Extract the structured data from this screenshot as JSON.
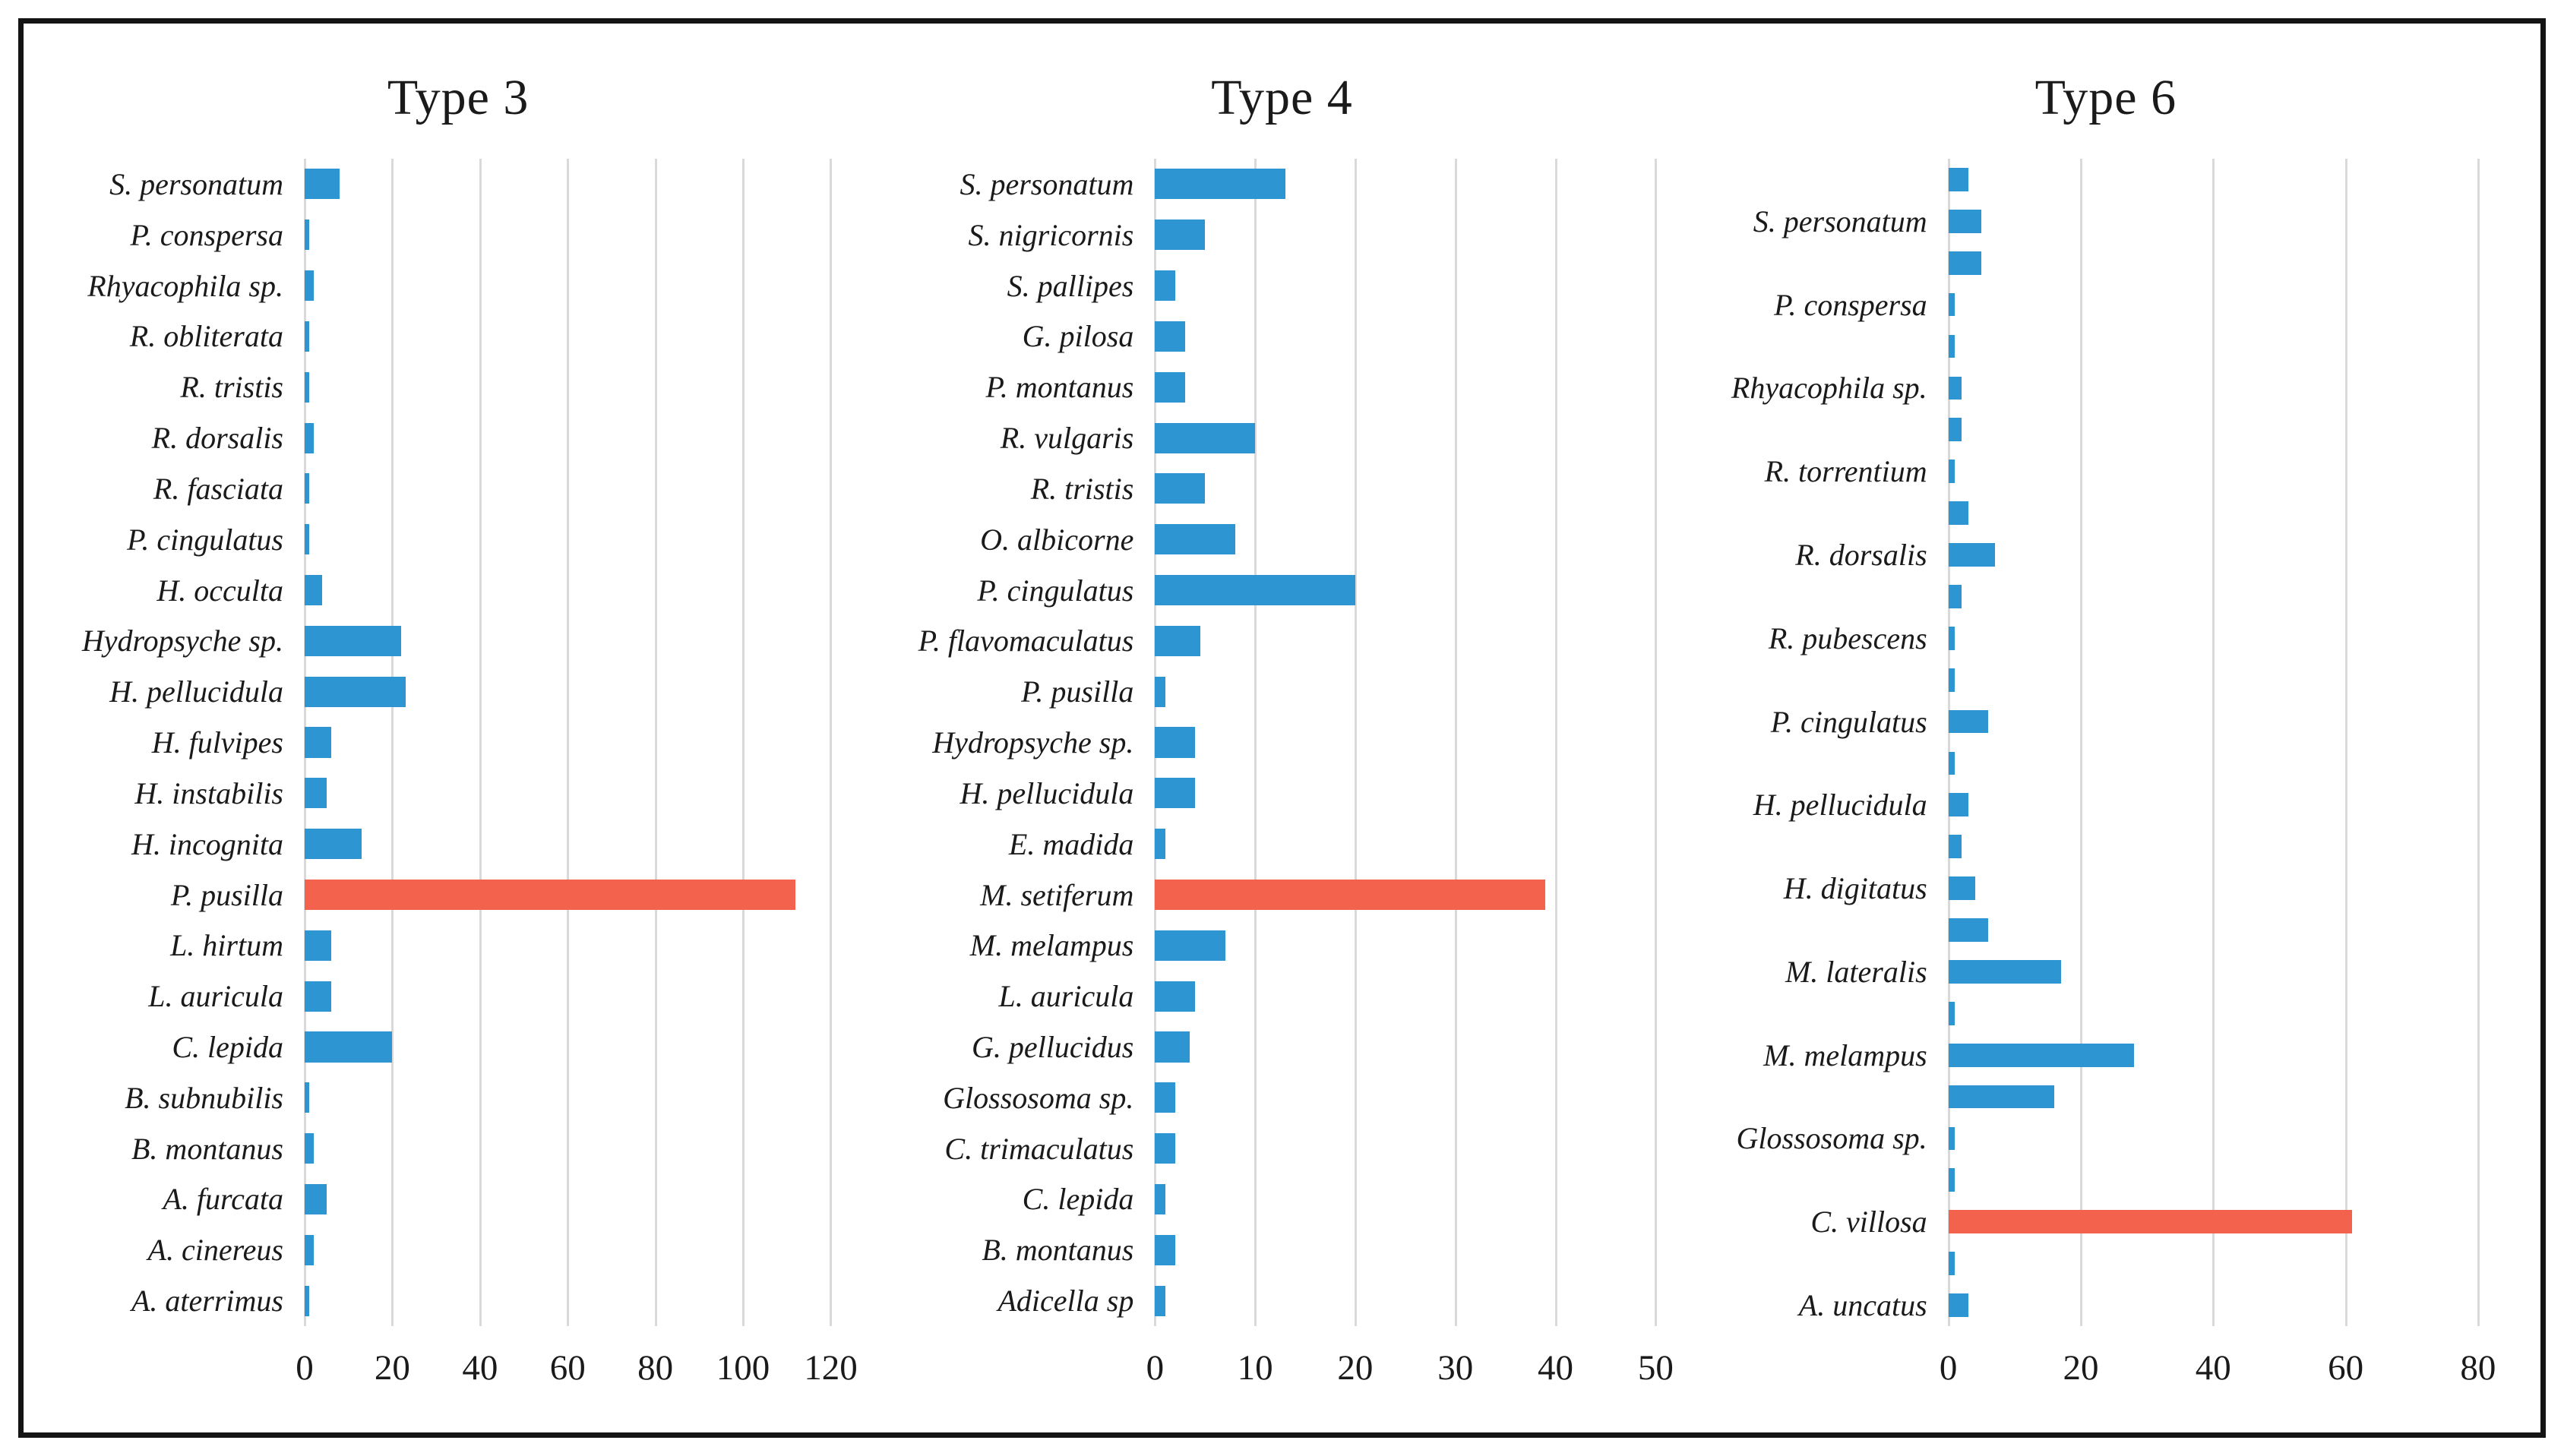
{
  "colors": {
    "bar": "#2D96D2",
    "highlight_bar": "#F2624D",
    "gridline": "#D9D9D9",
    "frame_border": "#141414",
    "text": "#1A1A1A",
    "background": "#FFFFFF"
  },
  "chart_data": [
    {
      "type": "bar",
      "orientation": "horizontal",
      "title": "Type 3",
      "xlabel": "",
      "ylabel": "",
      "xlim": [
        0,
        120
      ],
      "xticks": [
        0,
        20,
        40,
        60,
        80,
        100,
        120
      ],
      "grid": true,
      "legend": "none",
      "bars": [
        {
          "label": "S. personatum",
          "value": 8
        },
        {
          "label": "P. conspersa",
          "value": 1
        },
        {
          "label": "Rhyacophila sp.",
          "value": 2
        },
        {
          "label": "R. obliterata",
          "value": 1
        },
        {
          "label": "R. tristis",
          "value": 1
        },
        {
          "label": "R. dorsalis",
          "value": 2
        },
        {
          "label": "R. fasciata",
          "value": 1
        },
        {
          "label": "P. cingulatus",
          "value": 1
        },
        {
          "label": "H. occulta",
          "value": 4
        },
        {
          "label": "Hydropsyche sp.",
          "value": 22
        },
        {
          "label": "H. pellucidula",
          "value": 23
        },
        {
          "label": "H. fulvipes",
          "value": 6
        },
        {
          "label": "H. instabilis",
          "value": 5
        },
        {
          "label": "H. incognita",
          "value": 13
        },
        {
          "label": "P. pusilla",
          "value": 112,
          "highlight": true
        },
        {
          "label": "L. hirtum",
          "value": 6
        },
        {
          "label": "L. auricula",
          "value": 6
        },
        {
          "label": "C. lepida",
          "value": 20
        },
        {
          "label": "B. subnubilis",
          "value": 1
        },
        {
          "label": "B. montanus",
          "value": 2
        },
        {
          "label": "A. furcata",
          "value": 5
        },
        {
          "label": "A. cinereus",
          "value": 2
        },
        {
          "label": "A. aterrimus",
          "value": 1
        }
      ]
    },
    {
      "type": "bar",
      "orientation": "horizontal",
      "title": "Type 4",
      "xlabel": "",
      "ylabel": "",
      "xlim": [
        0,
        50
      ],
      "xticks": [
        0,
        10,
        20,
        30,
        40,
        50
      ],
      "grid": true,
      "legend": "none",
      "bars": [
        {
          "label": "S. personatum",
          "value": 13
        },
        {
          "label": "S. nigricornis",
          "value": 5
        },
        {
          "label": "S. pallipes",
          "value": 2
        },
        {
          "label": "G. pilosa",
          "value": 3
        },
        {
          "label": "P. montanus",
          "value": 3
        },
        {
          "label": "R. vulgaris",
          "value": 10
        },
        {
          "label": "R. tristis",
          "value": 5
        },
        {
          "label": "O. albicorne",
          "value": 8
        },
        {
          "label": "P. cingulatus",
          "value": 20
        },
        {
          "label": "P. flavomaculatus",
          "value": 4.5
        },
        {
          "label": "P. pusilla",
          "value": 1
        },
        {
          "label": "Hydropsyche sp.",
          "value": 4
        },
        {
          "label": "H. pellucidula",
          "value": 4
        },
        {
          "label": "E. madida",
          "value": 1
        },
        {
          "label": "M. setiferum",
          "value": 39,
          "highlight": true
        },
        {
          "label": "M. melampus",
          "value": 7
        },
        {
          "label": "L. auricula",
          "value": 4
        },
        {
          "label": "G. pellucidus",
          "value": 3.5
        },
        {
          "label": "Glossosoma sp.",
          "value": 2
        },
        {
          "label": "C. trimaculatus",
          "value": 2
        },
        {
          "label": "C. lepida",
          "value": 1
        },
        {
          "label": "B. montanus",
          "value": 2
        },
        {
          "label": "Adicella sp",
          "value": 1
        }
      ]
    },
    {
      "type": "bar",
      "orientation": "horizontal",
      "title": "Type 6",
      "xlabel": "",
      "ylabel": "",
      "xlim": [
        0,
        80
      ],
      "xticks": [
        0,
        20,
        40,
        60,
        80
      ],
      "grid": true,
      "legend": "none",
      "bars": [
        {
          "label": "",
          "value": 3
        },
        {
          "label": "S. personatum",
          "value": 5
        },
        {
          "label": "",
          "value": 5
        },
        {
          "label": "P. conspersa",
          "value": 1
        },
        {
          "label": "",
          "value": 1
        },
        {
          "label": "Rhyacophila sp.",
          "value": 2
        },
        {
          "label": "",
          "value": 2
        },
        {
          "label": "R. torrentium",
          "value": 1
        },
        {
          "label": "",
          "value": 3
        },
        {
          "label": "R. dorsalis",
          "value": 7
        },
        {
          "label": "",
          "value": 2
        },
        {
          "label": "R. pubescens",
          "value": 1
        },
        {
          "label": "",
          "value": 1
        },
        {
          "label": "P. cingulatus",
          "value": 6
        },
        {
          "label": "",
          "value": 1
        },
        {
          "label": "H. pellucidula",
          "value": 3
        },
        {
          "label": "",
          "value": 2
        },
        {
          "label": "H. digitatus",
          "value": 4
        },
        {
          "label": "",
          "value": 6
        },
        {
          "label": "M. lateralis",
          "value": 17
        },
        {
          "label": "",
          "value": 1
        },
        {
          "label": "M. melampus",
          "value": 28
        },
        {
          "label": "",
          "value": 16
        },
        {
          "label": "Glossosoma sp.",
          "value": 1
        },
        {
          "label": "",
          "value": 1
        },
        {
          "label": "C. villosa",
          "value": 61,
          "highlight": true
        },
        {
          "label": "",
          "value": 1
        },
        {
          "label": "A. uncatus",
          "value": 3
        }
      ]
    }
  ]
}
